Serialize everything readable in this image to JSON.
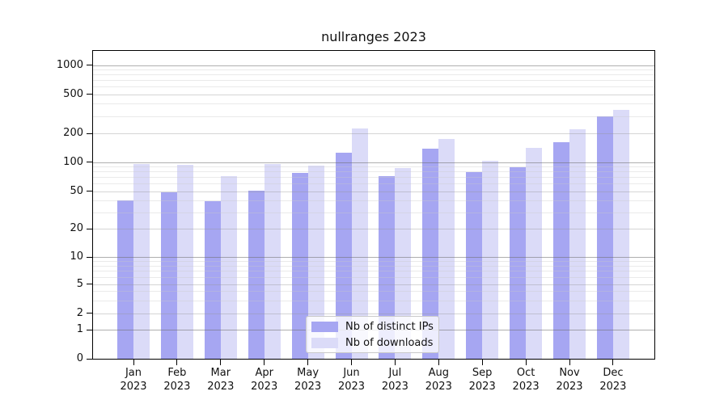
{
  "chart_data": {
    "type": "bar",
    "title": "nullranges 2023",
    "categories": [
      "Jan",
      "Feb",
      "Mar",
      "Apr",
      "May",
      "Jun",
      "Jul",
      "Aug",
      "Sep",
      "Oct",
      "Nov",
      "Dec"
    ],
    "x_year_label": "2023",
    "series": [
      {
        "name": "Nb of distinct IPs",
        "color": "#a6a6f2",
        "values": [
          40,
          49,
          39,
          51,
          77,
          124,
          72,
          138,
          78,
          88,
          160,
          300
        ]
      },
      {
        "name": "Nb of downloads",
        "color": "#dbdbf8",
        "values": [
          95,
          94,
          71,
          95,
          92,
          225,
          86,
          176,
          104,
          140,
          222,
          350
        ]
      }
    ],
    "xlabel": "",
    "ylabel": "",
    "yscale": "symlog",
    "yticks": [
      0,
      1,
      2,
      5,
      10,
      20,
      50,
      100,
      200,
      500,
      1000
    ],
    "ylim": [
      0,
      1500
    ],
    "grid": true,
    "legend_position": "lower center"
  }
}
